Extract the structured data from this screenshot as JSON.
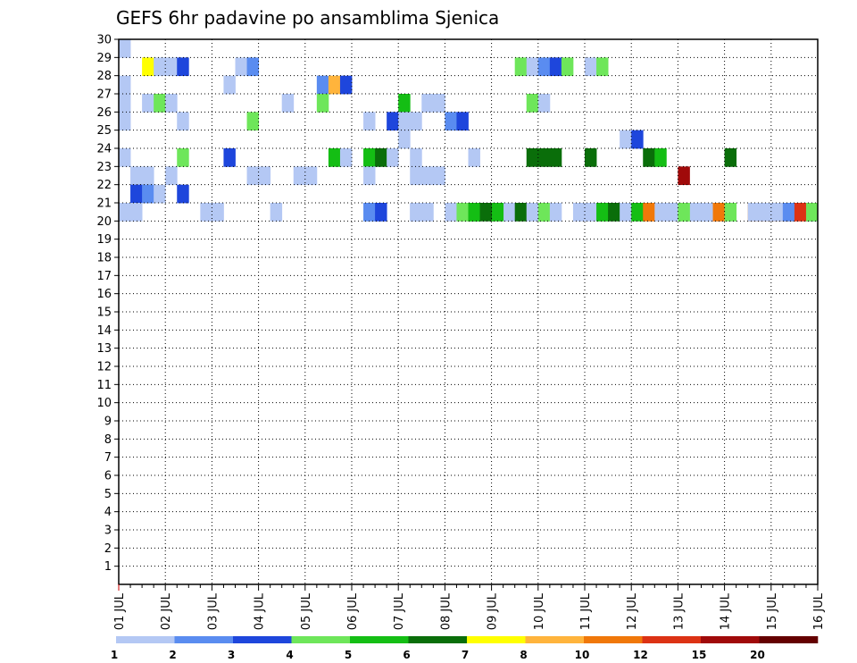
{
  "chart_data": {
    "type": "heatmap",
    "title": "GEFS 6hr padavine po ansamblima Sjenica",
    "xlabel": "",
    "ylabel": "",
    "x_tick_labels": [
      "01 JUL",
      "02 JUL",
      "03 JUL",
      "04 JUL",
      "05 JUL",
      "06 JUL",
      "07 JUL",
      "08 JUL",
      "09 JUL",
      "10 JUL",
      "11 JUL",
      "12 JUL",
      "13 JUL",
      "14 JUL",
      "15 JUL",
      "16 JUL"
    ],
    "y_tick_labels": [
      "1",
      "2",
      "3",
      "4",
      "5",
      "6",
      "7",
      "8",
      "9",
      "10",
      "11",
      "12",
      "13",
      "14",
      "15",
      "16",
      "17",
      "18",
      "19",
      "20",
      "21",
      "22",
      "23",
      "24",
      "25",
      "26",
      "27",
      "28",
      "29",
      "30"
    ],
    "xlim": [
      0,
      60
    ],
    "ylim": [
      0,
      30
    ],
    "grid": true,
    "legend": {
      "placement": "bottom",
      "labels": [
        "1",
        "2",
        "3",
        "4",
        "5",
        "6",
        "7",
        "8",
        "10",
        "12",
        "15",
        "20"
      ],
      "colors": [
        "#b4c8f4",
        "#5a8cf0",
        "#1e46dc",
        "#6ee65a",
        "#14be14",
        "#0a6e0a",
        "#ffff00",
        "#ffb43c",
        "#f0780a",
        "#dc3214",
        "#a00a0a",
        "#640000"
      ]
    },
    "color_levels": [
      "#b4c8f4",
      "#5a8cf0",
      "#1e46dc",
      "#6ee65a",
      "#14be14",
      "#0a6e0a",
      "#ffff00",
      "#ffb43c",
      "#f0780a",
      "#dc3214",
      "#a00a0a",
      "#640000"
    ],
    "cells": [
      [
        0,
        29,
        0
      ],
      [
        2,
        28,
        6
      ],
      [
        3,
        28,
        0
      ],
      [
        4,
        28,
        0
      ],
      [
        5,
        28,
        2
      ],
      [
        10,
        28,
        0
      ],
      [
        11,
        28,
        1
      ],
      [
        34,
        28,
        3
      ],
      [
        35,
        28,
        0
      ],
      [
        36,
        28,
        1
      ],
      [
        37,
        28,
        2
      ],
      [
        38,
        28,
        3
      ],
      [
        40,
        28,
        0
      ],
      [
        41,
        28,
        3
      ],
      [
        0,
        27,
        0
      ],
      [
        9,
        27,
        0
      ],
      [
        17,
        27,
        1
      ],
      [
        18,
        27,
        7
      ],
      [
        19,
        27,
        2
      ],
      [
        0,
        26,
        0
      ],
      [
        2,
        26,
        0
      ],
      [
        3,
        26,
        3
      ],
      [
        4,
        26,
        0
      ],
      [
        14,
        26,
        0
      ],
      [
        17,
        26,
        3
      ],
      [
        24,
        26,
        4
      ],
      [
        26,
        26,
        0
      ],
      [
        27,
        26,
        0
      ],
      [
        35,
        26,
        3
      ],
      [
        36,
        26,
        0
      ],
      [
        0,
        25,
        0
      ],
      [
        5,
        25,
        0
      ],
      [
        11,
        25,
        3
      ],
      [
        21,
        25,
        0
      ],
      [
        23,
        25,
        2
      ],
      [
        24,
        25,
        0
      ],
      [
        25,
        25,
        0
      ],
      [
        28,
        25,
        1
      ],
      [
        29,
        25,
        2
      ],
      [
        24,
        24,
        0
      ],
      [
        43,
        24,
        0
      ],
      [
        44,
        24,
        2
      ],
      [
        25,
        23,
        0
      ],
      [
        21,
        23,
        4
      ],
      [
        22,
        23,
        5
      ],
      [
        23,
        23,
        0
      ],
      [
        0,
        23,
        0
      ],
      [
        5,
        23,
        3
      ],
      [
        9,
        23,
        2
      ],
      [
        18,
        23,
        4
      ],
      [
        19,
        23,
        0
      ],
      [
        30,
        23,
        0
      ],
      [
        35,
        23,
        5
      ],
      [
        36,
        23,
        5
      ],
      [
        37,
        23,
        5
      ],
      [
        40,
        23,
        5
      ],
      [
        45,
        23,
        5
      ],
      [
        46,
        23,
        4
      ],
      [
        52,
        23,
        5
      ],
      [
        1,
        22,
        0
      ],
      [
        2,
        22,
        0
      ],
      [
        4,
        22,
        0
      ],
      [
        12,
        22,
        0
      ],
      [
        11,
        22,
        0
      ],
      [
        15,
        22,
        0
      ],
      [
        16,
        22,
        0
      ],
      [
        21,
        22,
        0
      ],
      [
        25,
        22,
        0
      ],
      [
        26,
        22,
        0
      ],
      [
        27,
        22,
        0
      ],
      [
        48,
        22,
        10
      ],
      [
        1,
        21,
        2
      ],
      [
        2,
        21,
        1
      ],
      [
        3,
        21,
        0
      ],
      [
        5,
        21,
        2
      ],
      [
        1,
        20,
        0
      ],
      [
        0,
        20,
        0
      ],
      [
        8,
        20,
        0
      ],
      [
        7,
        20,
        0
      ],
      [
        13,
        20,
        0
      ],
      [
        21,
        20,
        1
      ],
      [
        22,
        20,
        2
      ],
      [
        25,
        20,
        0
      ],
      [
        26,
        20,
        0
      ],
      [
        33,
        20,
        0
      ],
      [
        30,
        20,
        4
      ],
      [
        32,
        20,
        4
      ],
      [
        36,
        20,
        3
      ],
      [
        47,
        20,
        0
      ],
      [
        48,
        20,
        3
      ],
      [
        49,
        20,
        0
      ],
      [
        50,
        20,
        0
      ],
      [
        51,
        20,
        0
      ],
      [
        52,
        20,
        0
      ],
      [
        54,
        20,
        8
      ],
      [
        55,
        20,
        8
      ],
      [
        56,
        20,
        8
      ],
      [
        57,
        20,
        8
      ],
      [
        59,
        20,
        1
      ],
      [
        25,
        20,
        0
      ],
      [
        28,
        20,
        0
      ],
      [
        29,
        20,
        3
      ],
      [
        30,
        20,
        4
      ],
      [
        31,
        20,
        5
      ],
      [
        34,
        20,
        5
      ],
      [
        35,
        20,
        0
      ],
      [
        36,
        20,
        3
      ],
      [
        37,
        20,
        0
      ],
      [
        39,
        20,
        0
      ],
      [
        40,
        20,
        0
      ],
      [
        41,
        20,
        4
      ],
      [
        42,
        20,
        5
      ],
      [
        43,
        20,
        0
      ],
      [
        44,
        20,
        4
      ],
      [
        45,
        20,
        8
      ],
      [
        46,
        20,
        0
      ],
      [
        48,
        20,
        3
      ],
      [
        50,
        20,
        0
      ],
      [
        51,
        20,
        8
      ],
      [
        52,
        20,
        3
      ],
      [
        54,
        20,
        0
      ],
      [
        55,
        20,
        0
      ],
      [
        56,
        20,
        0
      ],
      [
        57,
        20,
        1
      ],
      [
        58,
        20,
        9
      ],
      [
        59,
        20,
        3
      ]
    ]
  }
}
